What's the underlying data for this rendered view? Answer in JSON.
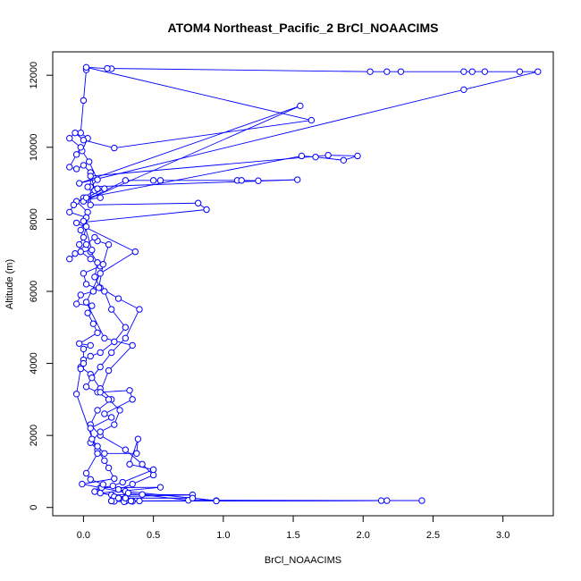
{
  "chart_data": {
    "type": "scatter",
    "title": "ATOM4 Northeast_Pacific_2 BrCl_NOAACIMS",
    "xlabel": "BrCl_NOAACIMS",
    "ylabel": "Altitude (m)",
    "xlim": [
      -0.22,
      3.36
    ],
    "ylim": [
      -230,
      12650
    ],
    "xticks": [
      0.0,
      0.5,
      1.0,
      1.5,
      2.0,
      2.5,
      3.0
    ],
    "xtick_labels": [
      "0.0",
      "0.5",
      "1.0",
      "1.5",
      "2.0",
      "2.5",
      "3.0"
    ],
    "yticks": [
      0,
      2000,
      4000,
      6000,
      8000,
      10000,
      12000
    ],
    "ytick_labels": [
      "0",
      "2000",
      "4000",
      "6000",
      "8000",
      "10000",
      "12000"
    ],
    "grid": false,
    "legend": "none",
    "colors": {
      "series": "#0000ff",
      "axis": "#000000",
      "background": "#ffffff"
    },
    "series": [
      {
        "marker": "open-circle",
        "line": true,
        "points": [
          [
            0.02,
            12200
          ],
          [
            0.02,
            12150
          ],
          [
            0.0,
            11300
          ],
          [
            -0.02,
            10400
          ],
          [
            0.03,
            10250
          ],
          [
            -0.01,
            9900
          ],
          [
            0.04,
            9600
          ],
          [
            0.1,
            9100
          ],
          [
            0.05,
            8900
          ],
          [
            0.12,
            8600
          ],
          [
            0.02,
            8550
          ],
          [
            -0.05,
            8500
          ],
          [
            0.03,
            8200
          ],
          [
            0.02,
            7800
          ],
          [
            0.0,
            7500
          ],
          [
            -0.03,
            7300
          ],
          [
            -0.02,
            7100
          ],
          [
            0.05,
            6900
          ],
          [
            0.12,
            6700
          ],
          [
            0.0,
            6500
          ],
          [
            0.02,
            6200
          ],
          [
            0.15,
            6000
          ],
          [
            0.2,
            5500
          ],
          [
            0.3,
            5000
          ],
          [
            0.22,
            4600
          ],
          [
            0.12,
            4300
          ],
          [
            0.05,
            4200
          ],
          [
            0.0,
            4100
          ],
          [
            -0.02,
            3900
          ],
          [
            0.05,
            3700
          ],
          [
            0.12,
            3300
          ],
          [
            0.2,
            3000
          ],
          [
            0.1,
            2700
          ],
          [
            0.05,
            2300
          ],
          [
            0.12,
            2000
          ],
          [
            0.3,
            1600
          ],
          [
            0.42,
            1200
          ],
          [
            0.5,
            900
          ],
          [
            0.35,
            650
          ],
          [
            0.25,
            500
          ],
          [
            0.3,
            450
          ],
          [
            0.95,
            190
          ],
          [
            0.4,
            180
          ],
          [
            0.3,
            170
          ],
          [
            0.2,
            180
          ],
          [
            2.13,
            190
          ],
          [
            2.42,
            190
          ],
          [
            0.75,
            200
          ],
          [
            0.32,
            400
          ],
          [
            0.12,
            550
          ],
          [
            -0.01,
            650
          ],
          [
            0.22,
            800
          ],
          [
            0.18,
            1100
          ],
          [
            0.15,
            1300
          ],
          [
            0.1,
            1600
          ],
          [
            0.05,
            1800
          ],
          [
            0.12,
            2100
          ],
          [
            0.22,
            2300
          ],
          [
            0.26,
            2700
          ],
          [
            0.18,
            3000
          ],
          [
            0.1,
            3200
          ],
          [
            0.02,
            3350
          ],
          [
            0.06,
            3600
          ],
          [
            0.12,
            3900
          ],
          [
            0.2,
            4300
          ],
          [
            0.3,
            4700
          ],
          [
            0.4,
            5500
          ],
          [
            0.25,
            5800
          ],
          [
            0.12,
            6100
          ],
          [
            0.08,
            6400
          ],
          [
            0.1,
            6800
          ],
          [
            0.05,
            7100
          ],
          [
            0.02,
            7300
          ],
          [
            -0.02,
            7700
          ],
          [
            0.02,
            8050
          ],
          [
            -0.1,
            8200
          ],
          [
            -0.07,
            8400
          ],
          [
            0.0,
            8600
          ],
          [
            0.08,
            8800
          ],
          [
            0.05,
            9300
          ],
          [
            0.0,
            9500
          ],
          [
            -0.05,
            9400
          ],
          [
            -0.1,
            9450
          ],
          [
            -0.05,
            9800
          ],
          [
            -0.02,
            10000
          ],
          [
            -0.1,
            10250
          ],
          [
            -0.06,
            10400
          ],
          [
            0.0,
            10200
          ],
          [
            0.22,
            9980
          ],
          [
            1.63,
            10750
          ],
          [
            0.02,
            12220
          ],
          [
            0.2,
            12180
          ],
          [
            0.17,
            12190
          ],
          [
            2.05,
            12100
          ],
          [
            2.17,
            12100
          ],
          [
            2.27,
            12100
          ],
          [
            2.72,
            12100
          ],
          [
            2.78,
            12100
          ],
          [
            2.87,
            12100
          ],
          [
            3.12,
            12100
          ],
          [
            3.25,
            12100
          ],
          [
            2.72,
            11600
          ],
          [
            -0.03,
            9000
          ],
          [
            1.55,
            11150
          ],
          [
            0.0,
            8500
          ],
          [
            0.3,
            9080
          ],
          [
            0.5,
            9080
          ],
          [
            0.55,
            9080
          ],
          [
            1.1,
            9080
          ],
          [
            1.13,
            9080
          ],
          [
            1.25,
            9070
          ],
          [
            1.53,
            9100
          ],
          [
            0.03,
            8900
          ],
          [
            0.1,
            8850
          ],
          [
            0.15,
            8850
          ],
          [
            0.02,
            8600
          ],
          [
            1.56,
            9760
          ],
          [
            1.66,
            9730
          ],
          [
            1.86,
            9640
          ],
          [
            1.96,
            9760
          ],
          [
            1.75,
            9780
          ],
          [
            0.05,
            9200
          ],
          [
            0.05,
            8400
          ],
          [
            0.82,
            8450
          ],
          [
            0.88,
            8270
          ],
          [
            -0.05,
            7900
          ],
          [
            0.37,
            7100
          ],
          [
            0.12,
            6500
          ],
          [
            0.02,
            5700
          ],
          [
            0.15,
            4700
          ],
          [
            0.35,
            4500
          ],
          [
            0.18,
            3800
          ],
          [
            0.12,
            3200
          ],
          [
            0.33,
            3250
          ],
          [
            0.35,
            3000
          ],
          [
            0.15,
            2600
          ],
          [
            0.2,
            2500
          ],
          [
            0.05,
            2200
          ],
          [
            0.06,
            1900
          ],
          [
            0.1,
            1700
          ],
          [
            0.15,
            1500
          ],
          [
            0.38,
            1500
          ],
          [
            0.39,
            1900
          ],
          [
            0.33,
            1200
          ],
          [
            0.5,
            1050
          ],
          [
            0.28,
            700
          ],
          [
            0.21,
            600
          ],
          [
            0.13,
            550
          ],
          [
            0.55,
            560
          ],
          [
            0.12,
            400
          ],
          [
            0.2,
            350
          ],
          [
            0.42,
            360
          ],
          [
            0.78,
            350
          ],
          [
            0.22,
            300
          ],
          [
            0.22,
            170
          ],
          [
            0.35,
            170
          ],
          [
            0.29,
            160
          ],
          [
            0.34,
            180
          ],
          [
            0.2,
            180
          ],
          [
            2.17,
            190
          ],
          [
            0.95,
            180
          ],
          [
            0.78,
            260
          ],
          [
            0.25,
            260
          ],
          [
            0.3,
            260
          ],
          [
            0.08,
            440
          ],
          [
            0.14,
            640
          ],
          [
            0.05,
            780
          ],
          [
            0.02,
            950
          ],
          [
            0.1,
            1500
          ],
          [
            -0.05,
            3150
          ],
          [
            -0.02,
            3850
          ],
          [
            0.0,
            4000
          ],
          [
            0.0,
            4400
          ],
          [
            0.05,
            4500
          ],
          [
            -0.03,
            4550
          ],
          [
            0.1,
            4850
          ],
          [
            0.07,
            5100
          ],
          [
            0.03,
            5400
          ],
          [
            0.06,
            5600
          ],
          [
            -0.05,
            5650
          ],
          [
            -0.02,
            5900
          ],
          [
            0.07,
            6000
          ],
          [
            0.11,
            6100
          ],
          [
            0.14,
            6750
          ],
          [
            0.18,
            7300
          ],
          [
            0.1,
            7400
          ],
          [
            0.08,
            7500
          ],
          [
            -0.1,
            6900
          ],
          [
            -0.06,
            7050
          ],
          [
            0.06,
            7150
          ],
          [
            0.0,
            7950
          ]
        ]
      }
    ]
  }
}
